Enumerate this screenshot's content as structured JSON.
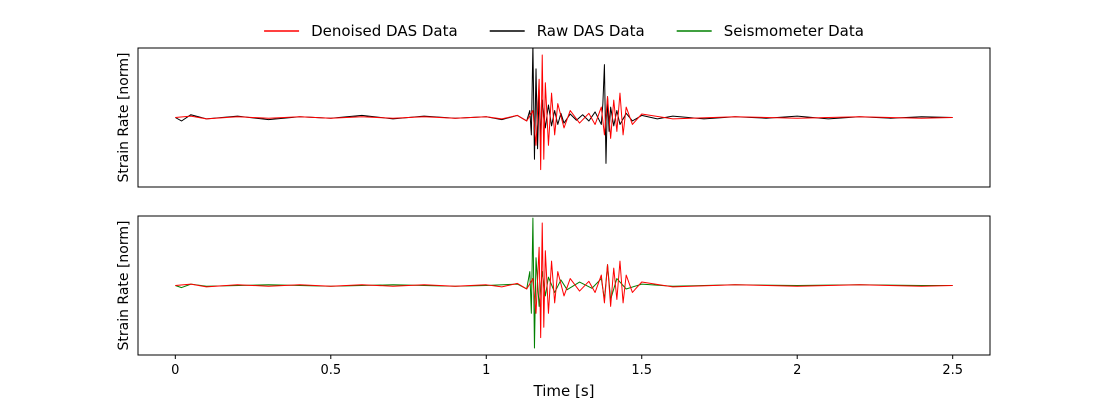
{
  "chart_data": {
    "type": "line",
    "legend": {
      "placement": "top-center",
      "entries": [
        {
          "name": "Denoised DAS Data",
          "color": "#ff0000"
        },
        {
          "name": "Raw DAS Data",
          "color": "#000000"
        },
        {
          "name": "Seismometer Data",
          "color": "#008000"
        }
      ]
    },
    "xlabel": "Time [s]",
    "xlim": [
      -0.12,
      2.62
    ],
    "xticks": [
      {
        "value": 0,
        "label": "0"
      },
      {
        "value": 0.5,
        "label": "0.5"
      },
      {
        "value": 1,
        "label": "1"
      },
      {
        "value": 1.5,
        "label": "1.5"
      },
      {
        "value": 2,
        "label": "2"
      },
      {
        "value": 2.5,
        "label": "2.5"
      }
    ],
    "grid": false,
    "panels": [
      {
        "ylabel": "Strain Rate [norm]",
        "ylim": [
          -1.0,
          1.0
        ],
        "yticks_visible": false,
        "xticks_visible": false,
        "series": [
          {
            "name": "Raw DAS Data",
            "color": "#000000",
            "x": [
              0.0,
              0.02,
              0.05,
              0.1,
              0.2,
              0.3,
              0.4,
              0.5,
              0.6,
              0.7,
              0.8,
              0.9,
              1.0,
              1.05,
              1.1,
              1.13,
              1.14,
              1.145,
              1.15,
              1.155,
              1.16,
              1.165,
              1.17,
              1.175,
              1.18,
              1.19,
              1.2,
              1.21,
              1.22,
              1.23,
              1.24,
              1.25,
              1.27,
              1.29,
              1.31,
              1.33,
              1.35,
              1.37,
              1.375,
              1.38,
              1.385,
              1.39,
              1.395,
              1.4,
              1.41,
              1.42,
              1.43,
              1.45,
              1.47,
              1.5,
              1.55,
              1.6,
              1.7,
              1.8,
              1.9,
              2.0,
              2.1,
              2.2,
              2.3,
              2.4,
              2.5
            ],
            "y": [
              0.0,
              -0.05,
              0.04,
              -0.02,
              0.02,
              -0.03,
              0.01,
              -0.01,
              0.03,
              -0.02,
              0.02,
              -0.01,
              0.01,
              -0.03,
              0.03,
              -0.05,
              0.1,
              -0.25,
              1.05,
              -0.6,
              0.7,
              -0.45,
              0.4,
              -0.3,
              0.25,
              -0.15,
              0.18,
              -0.12,
              0.1,
              -0.1,
              0.06,
              -0.08,
              0.05,
              -0.04,
              0.04,
              -0.05,
              0.08,
              -0.1,
              0.2,
              0.76,
              -0.66,
              0.3,
              -0.2,
              0.15,
              -0.12,
              0.1,
              -0.1,
              0.06,
              -0.05,
              0.03,
              -0.02,
              0.02,
              -0.02,
              0.01,
              -0.01,
              0.02,
              -0.02,
              0.01,
              -0.01,
              0.01,
              0.0
            ]
          },
          {
            "name": "Denoised DAS Data",
            "color": "#ff0000",
            "x": [
              0.0,
              0.05,
              0.1,
              0.2,
              0.3,
              0.4,
              0.5,
              0.6,
              0.7,
              0.8,
              0.9,
              1.0,
              1.05,
              1.1,
              1.13,
              1.15,
              1.16,
              1.17,
              1.175,
              1.18,
              1.185,
              1.19,
              1.2,
              1.21,
              1.22,
              1.23,
              1.25,
              1.27,
              1.3,
              1.33,
              1.35,
              1.37,
              1.38,
              1.39,
              1.4,
              1.41,
              1.42,
              1.43,
              1.44,
              1.45,
              1.47,
              1.5,
              1.6,
              1.8,
              2.0,
              2.2,
              2.4,
              2.5
            ],
            "y": [
              0.0,
              0.02,
              -0.02,
              0.01,
              -0.01,
              0.01,
              -0.01,
              0.01,
              -0.01,
              0.01,
              -0.01,
              0.01,
              -0.02,
              0.03,
              -0.05,
              0.1,
              -0.4,
              0.55,
              -0.75,
              0.9,
              -0.6,
              0.5,
              -0.4,
              0.35,
              -0.25,
              0.2,
              -0.15,
              0.1,
              -0.08,
              0.06,
              -0.1,
              0.15,
              -0.25,
              0.3,
              -0.3,
              0.25,
              -0.2,
              0.35,
              -0.25,
              0.15,
              -0.1,
              0.05,
              -0.02,
              0.01,
              -0.01,
              0.01,
              -0.01,
              0.0
            ]
          }
        ]
      },
      {
        "ylabel": "Strain Rate [norm]",
        "ylim": [
          -1.0,
          1.0
        ],
        "yticks_visible": false,
        "xticks_visible": true,
        "series": [
          {
            "name": "Seismometer Data",
            "color": "#008000",
            "x": [
              0.0,
              0.02,
              0.05,
              0.1,
              0.3,
              0.5,
              0.7,
              0.9,
              1.0,
              1.1,
              1.13,
              1.14,
              1.145,
              1.15,
              1.155,
              1.16,
              1.17,
              1.18,
              1.19,
              1.2,
              1.22,
              1.24,
              1.26,
              1.3,
              1.34,
              1.37,
              1.38,
              1.39,
              1.4,
              1.42,
              1.45,
              1.5,
              1.6,
              1.8,
              2.0,
              2.2,
              2.4,
              2.5
            ],
            "y": [
              0.0,
              -0.03,
              0.02,
              -0.01,
              0.01,
              -0.01,
              0.01,
              -0.01,
              0.0,
              0.02,
              -0.05,
              0.2,
              -0.4,
              0.97,
              -0.9,
              0.4,
              -0.3,
              0.2,
              -0.15,
              0.12,
              -0.1,
              0.08,
              -0.06,
              0.05,
              -0.04,
              0.1,
              -0.2,
              0.3,
              -0.2,
              0.1,
              -0.05,
              0.02,
              -0.01,
              0.01,
              0.0,
              0.01,
              0.0,
              0.0
            ]
          },
          {
            "name": "Denoised DAS Data",
            "color": "#ff0000",
            "x": [
              0.0,
              0.05,
              0.1,
              0.2,
              0.3,
              0.4,
              0.5,
              0.6,
              0.7,
              0.8,
              0.9,
              1.0,
              1.05,
              1.1,
              1.13,
              1.15,
              1.16,
              1.17,
              1.175,
              1.18,
              1.185,
              1.19,
              1.2,
              1.21,
              1.22,
              1.23,
              1.25,
              1.27,
              1.3,
              1.33,
              1.35,
              1.37,
              1.38,
              1.39,
              1.4,
              1.41,
              1.42,
              1.43,
              1.44,
              1.45,
              1.47,
              1.5,
              1.6,
              1.8,
              2.0,
              2.2,
              2.4,
              2.5
            ],
            "y": [
              0.0,
              0.02,
              -0.02,
              0.01,
              -0.01,
              0.01,
              -0.01,
              0.01,
              -0.01,
              0.01,
              -0.01,
              0.01,
              -0.02,
              0.03,
              -0.05,
              0.1,
              -0.4,
              0.55,
              -0.75,
              0.9,
              -0.6,
              0.5,
              -0.4,
              0.35,
              -0.25,
              0.2,
              -0.15,
              0.1,
              -0.08,
              0.06,
              -0.1,
              0.15,
              -0.25,
              0.3,
              -0.3,
              0.25,
              -0.2,
              0.35,
              -0.25,
              0.15,
              -0.1,
              0.05,
              -0.02,
              0.01,
              -0.01,
              0.01,
              -0.01,
              0.0
            ]
          }
        ]
      }
    ]
  }
}
